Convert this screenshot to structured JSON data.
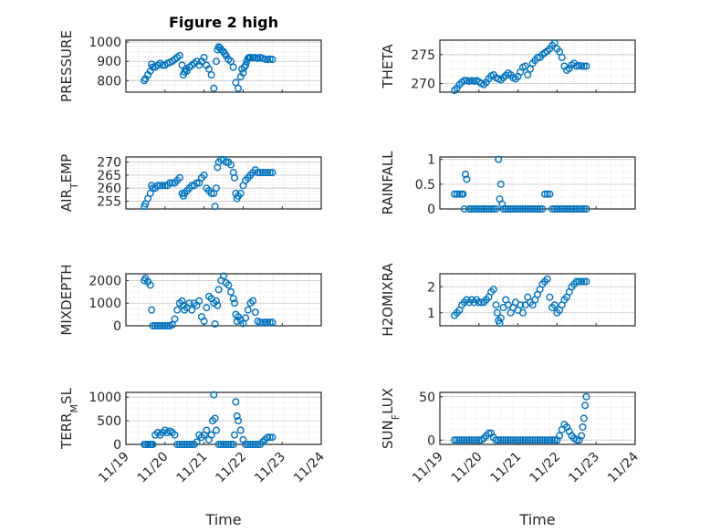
{
  "title": "Figure 2 high",
  "xlabel": "Time",
  "colors": {
    "marker": "#0072BD",
    "grid": "#d9d9d9",
    "axis": "#262626"
  },
  "chart_data": [
    {
      "type": "scatter",
      "col": 0,
      "row": 0,
      "ylabel": "PRESSURE",
      "ylim": [
        740,
        1010
      ],
      "yticks": [
        800,
        900,
        1000
      ],
      "xlim": [
        0,
        8
      ],
      "xticklabels": [],
      "grid": true,
      "x": [
        0.75,
        0.8,
        0.9,
        1.0,
        1.05,
        1.1,
        1.2,
        1.3,
        1.4,
        1.5,
        1.6,
        1.7,
        1.8,
        1.9,
        2.0,
        2.1,
        2.2,
        2.3,
        2.35,
        2.4,
        2.45,
        2.5,
        2.6,
        2.7,
        2.8,
        2.9,
        3.0,
        3.1,
        3.2,
        3.3,
        3.4,
        3.5,
        3.6,
        3.7,
        3.75,
        3.8,
        3.85,
        3.9,
        4.0,
        4.05,
        4.1,
        4.2,
        4.3,
        4.4,
        4.5,
        4.6,
        4.7,
        4.75,
        4.8,
        4.85,
        4.9,
        4.95,
        5.0,
        5.05,
        5.1,
        5.2,
        5.3,
        5.4,
        5.5,
        5.6,
        5.7,
        5.8,
        5.9,
        6.0
      ],
      "y": [
        800,
        810,
        830,
        850,
        885,
        870,
        870,
        880,
        890,
        880,
        880,
        890,
        895,
        900,
        910,
        920,
        930,
        880,
        830,
        845,
        860,
        850,
        870,
        880,
        890,
        900,
        880,
        900,
        920,
        880,
        860,
        830,
        760,
        900,
        960,
        975,
        970,
        960,
        950,
        940,
        930,
        910,
        900,
        870,
        790,
        760,
        820,
        860,
        840,
        870,
        880,
        900,
        915,
        920,
        920,
        918,
        920,
        915,
        920,
        915,
        912,
        910,
        912,
        910
      ]
    },
    {
      "type": "scatter",
      "col": 1,
      "row": 0,
      "ylabel": "THETA",
      "ylim": [
        268.5,
        277.5
      ],
      "yticks": [
        270,
        275
      ],
      "xlim": [
        0,
        8
      ],
      "xticklabels": [],
      "grid": true,
      "x": [
        0.6,
        0.7,
        0.8,
        0.9,
        1.0,
        1.1,
        1.2,
        1.3,
        1.4,
        1.5,
        1.6,
        1.7,
        1.8,
        1.9,
        2.0,
        2.1,
        2.2,
        2.3,
        2.4,
        2.5,
        2.6,
        2.7,
        2.8,
        2.9,
        3.0,
        3.1,
        3.2,
        3.3,
        3.4,
        3.5,
        3.6,
        3.7,
        3.8,
        3.9,
        4.0,
        4.1,
        4.2,
        4.3,
        4.4,
        4.5,
        4.6,
        4.7,
        4.8,
        4.9,
        5.0,
        5.1,
        5.2,
        5.3,
        5.4,
        5.5,
        5.6,
        5.7,
        5.8,
        5.9,
        6.0
      ],
      "y": [
        268.8,
        269.2,
        269.8,
        270.2,
        270.5,
        270.5,
        270.4,
        270.5,
        270.4,
        270.5,
        270.3,
        270.0,
        269.8,
        270.2,
        270.8,
        271.3,
        271.5,
        271.0,
        270.8,
        270.6,
        271.0,
        271.4,
        271.8,
        271.5,
        271.0,
        270.8,
        271.2,
        272.0,
        272.8,
        273.0,
        271.5,
        272.5,
        273.5,
        274.0,
        274.5,
        274.5,
        275.0,
        275.3,
        275.6,
        276.0,
        276.6,
        277.0,
        276.0,
        275.5,
        274.5,
        273.0,
        272.3,
        272.6,
        273.2,
        273.5,
        273.0,
        273.1,
        273.0,
        273.0,
        273.0
      ]
    },
    {
      "type": "scatter",
      "col": 0,
      "row": 1,
      "ylabel": "AIR_TEMP",
      "ylim": [
        252,
        272
      ],
      "yticks": [
        255,
        260,
        265,
        270
      ],
      "xlim": [
        0,
        8
      ],
      "xticklabels": [],
      "grid": true,
      "x": [
        0.75,
        0.8,
        0.9,
        1.0,
        1.05,
        1.1,
        1.2,
        1.3,
        1.4,
        1.5,
        1.6,
        1.7,
        1.8,
        1.9,
        2.0,
        2.1,
        2.2,
        2.3,
        2.35,
        2.4,
        2.5,
        2.6,
        2.7,
        2.8,
        2.9,
        3.0,
        3.1,
        3.2,
        3.3,
        3.4,
        3.5,
        3.6,
        3.65,
        3.7,
        3.75,
        3.8,
        3.9,
        4.0,
        4.1,
        4.2,
        4.3,
        4.4,
        4.45,
        4.5,
        4.55,
        4.6,
        4.7,
        4.8,
        4.9,
        5.0,
        5.1,
        5.2,
        5.3,
        5.4,
        5.5,
        5.6,
        5.7,
        5.8,
        5.9,
        6.0
      ],
      "y": [
        253,
        254,
        256,
        258,
        261,
        260,
        260,
        261,
        261,
        261,
        261,
        261,
        262,
        262,
        262,
        263,
        264,
        258,
        257,
        258,
        259,
        260,
        261,
        261,
        262,
        262,
        264,
        265,
        260,
        259,
        258,
        258,
        253,
        260,
        268,
        270,
        271,
        271,
        270,
        270,
        269,
        266,
        264,
        258,
        256,
        257,
        258,
        261,
        263,
        264,
        265,
        266,
        267,
        266,
        266,
        266,
        266,
        266,
        266,
        266
      ]
    },
    {
      "type": "scatter",
      "col": 1,
      "row": 1,
      "ylabel": "RAINFALL",
      "ylim": [
        0,
        1.05
      ],
      "yticks": [
        0,
        0.5,
        1
      ],
      "xlim": [
        0,
        8
      ],
      "xticklabels": [],
      "grid": true,
      "x": [
        0.6,
        0.7,
        0.8,
        0.9,
        0.95,
        1.0,
        1.05,
        1.1,
        1.2,
        1.3,
        1.4,
        1.5,
        1.6,
        1.7,
        1.8,
        1.9,
        2.0,
        2.1,
        2.2,
        2.3,
        2.4,
        2.45,
        2.5,
        2.55,
        2.6,
        2.7,
        2.8,
        2.9,
        3.0,
        3.1,
        3.2,
        3.3,
        3.4,
        3.5,
        3.6,
        3.7,
        3.8,
        3.9,
        4.0,
        4.1,
        4.2,
        4.3,
        4.4,
        4.5,
        4.6,
        4.7,
        4.8,
        4.9,
        5.0,
        5.1,
        5.2,
        5.3,
        5.4,
        5.5,
        5.6,
        5.7,
        5.8,
        5.9,
        6.0
      ],
      "y": [
        0.3,
        0.3,
        0.3,
        0.3,
        0.3,
        0.0,
        0.7,
        0.6,
        0,
        0,
        0,
        0,
        0,
        0,
        0,
        0,
        0,
        0,
        0,
        0,
        1.0,
        0.2,
        0.5,
        0.1,
        0,
        0,
        0,
        0,
        0,
        0,
        0,
        0,
        0,
        0,
        0,
        0,
        0,
        0,
        0,
        0,
        0,
        0.3,
        0.3,
        0.3,
        0,
        0,
        0,
        0,
        0,
        0,
        0,
        0,
        0,
        0,
        0,
        0,
        0,
        0,
        0
      ]
    },
    {
      "type": "scatter",
      "col": 0,
      "row": 2,
      "ylabel": "MIXDEPTH",
      "ylim": [
        0,
        2300
      ],
      "yticks": [
        0,
        1000,
        2000
      ],
      "xlim": [
        0,
        8
      ],
      "xticklabels": [],
      "grid": true,
      "x": [
        0.75,
        0.8,
        0.9,
        1.0,
        1.05,
        1.1,
        1.2,
        1.3,
        1.4,
        1.5,
        1.6,
        1.7,
        1.8,
        1.9,
        2.0,
        2.1,
        2.2,
        2.3,
        2.35,
        2.4,
        2.5,
        2.6,
        2.7,
        2.8,
        2.9,
        3.0,
        3.1,
        3.2,
        3.3,
        3.4,
        3.5,
        3.6,
        3.65,
        3.7,
        3.75,
        3.8,
        3.9,
        4.0,
        4.1,
        4.2,
        4.3,
        4.4,
        4.45,
        4.5,
        4.55,
        4.6,
        4.7,
        4.8,
        4.9,
        5.0,
        5.1,
        5.2,
        5.3,
        5.4,
        5.5,
        5.6,
        5.7,
        5.8,
        5.9,
        6.0
      ],
      "y": [
        2000,
        2100,
        1950,
        1800,
        700,
        0,
        0,
        0,
        0,
        0,
        0,
        0,
        0,
        50,
        300,
        700,
        1000,
        1100,
        900,
        700,
        800,
        1000,
        700,
        1000,
        900,
        1100,
        400,
        200,
        800,
        1300,
        1200,
        1000,
        80,
        1100,
        900,
        1600,
        2000,
        2200,
        1900,
        1800,
        1500,
        1200,
        1000,
        500,
        200,
        400,
        250,
        100,
        350,
        700,
        1000,
        1100,
        600,
        200,
        150,
        150,
        150,
        150,
        150,
        150
      ]
    },
    {
      "type": "scatter",
      "col": 1,
      "row": 2,
      "ylabel": "H2OMIXRA",
      "ylim": [
        0.5,
        2.5
      ],
      "yticks": [
        1,
        2
      ],
      "xlim": [
        0,
        8
      ],
      "xticklabels": [],
      "grid": true,
      "x": [
        0.6,
        0.7,
        0.8,
        0.9,
        1.0,
        1.1,
        1.2,
        1.3,
        1.4,
        1.5,
        1.6,
        1.7,
        1.8,
        1.9,
        2.0,
        2.1,
        2.2,
        2.3,
        2.35,
        2.4,
        2.45,
        2.5,
        2.6,
        2.7,
        2.8,
        2.9,
        3.0,
        3.1,
        3.2,
        3.3,
        3.4,
        3.5,
        3.6,
        3.7,
        3.8,
        3.9,
        4.0,
        4.1,
        4.2,
        4.3,
        4.4,
        4.5,
        4.6,
        4.7,
        4.8,
        4.9,
        5.0,
        5.1,
        5.2,
        5.3,
        5.4,
        5.5,
        5.6,
        5.7,
        5.8,
        5.9,
        6.0
      ],
      "y": [
        0.9,
        1.0,
        1.1,
        1.3,
        1.4,
        1.5,
        1.4,
        1.5,
        1.4,
        1.5,
        1.4,
        1.4,
        1.4,
        1.5,
        1.6,
        1.8,
        1.9,
        1.3,
        1.0,
        0.7,
        0.6,
        0.8,
        1.2,
        1.5,
        1.3,
        1.0,
        1.2,
        1.4,
        1.1,
        1.3,
        1.0,
        1.3,
        1.6,
        1.4,
        1.3,
        1.5,
        1.7,
        1.9,
        2.1,
        2.2,
        2.3,
        1.6,
        1.2,
        1.3,
        1.0,
        1.1,
        1.3,
        1.5,
        1.6,
        1.8,
        2.0,
        2.1,
        2.2,
        2.2,
        2.2,
        2.2,
        2.2
      ]
    },
    {
      "type": "scatter",
      "col": 0,
      "row": 3,
      "ylabel": "TERR_MSL",
      "ylim": [
        0,
        1100
      ],
      "yticks": [
        0,
        500,
        1000
      ],
      "xlim": [
        0,
        8
      ],
      "xticklabels": [
        "11/19",
        "11/20",
        "11/21",
        "11/22",
        "11/23",
        "11/24"
      ],
      "grid": true,
      "x": [
        0.75,
        0.8,
        0.9,
        1.0,
        1.05,
        1.1,
        1.2,
        1.3,
        1.4,
        1.5,
        1.6,
        1.7,
        1.8,
        1.9,
        2.0,
        2.1,
        2.2,
        2.3,
        2.4,
        2.5,
        2.6,
        2.7,
        2.8,
        2.9,
        3.0,
        3.1,
        3.2,
        3.3,
        3.4,
        3.5,
        3.55,
        3.6,
        3.65,
        3.7,
        3.8,
        3.9,
        4.0,
        4.1,
        4.2,
        4.3,
        4.4,
        4.45,
        4.5,
        4.55,
        4.6,
        4.7,
        4.8,
        4.9,
        5.0,
        5.1,
        5.2,
        5.3,
        5.4,
        5.5,
        5.6,
        5.7,
        5.8,
        5.9,
        6.0
      ],
      "y": [
        0,
        0,
        0,
        0,
        0,
        0,
        200,
        250,
        200,
        250,
        300,
        250,
        280,
        250,
        200,
        0,
        0,
        0,
        0,
        0,
        0,
        0,
        0,
        50,
        200,
        150,
        200,
        300,
        100,
        200,
        500,
        1050,
        550,
        300,
        0,
        0,
        0,
        0,
        0,
        0,
        0,
        200,
        900,
        600,
        500,
        300,
        100,
        0,
        0,
        0,
        0,
        0,
        0,
        0,
        50,
        100,
        150,
        150,
        150
      ]
    },
    {
      "type": "scatter",
      "col": 1,
      "row": 3,
      "ylabel": "SUN_FLUX",
      "ylim": [
        -5,
        55
      ],
      "yticks": [
        0,
        50
      ],
      "xlim": [
        0,
        8
      ],
      "xticklabels": [
        "11/19",
        "11/20",
        "11/21",
        "11/22",
        "11/23",
        "11/24"
      ],
      "grid": true,
      "x": [
        0.6,
        0.7,
        0.8,
        0.9,
        1.0,
        1.1,
        1.2,
        1.3,
        1.4,
        1.5,
        1.6,
        1.7,
        1.8,
        1.9,
        2.0,
        2.1,
        2.2,
        2.3,
        2.4,
        2.5,
        2.6,
        2.7,
        2.8,
        2.9,
        3.0,
        3.1,
        3.2,
        3.3,
        3.4,
        3.5,
        3.6,
        3.7,
        3.8,
        3.9,
        4.0,
        4.1,
        4.2,
        4.3,
        4.4,
        4.5,
        4.6,
        4.7,
        4.8,
        4.9,
        5.0,
        5.1,
        5.2,
        5.3,
        5.4,
        5.5,
        5.6,
        5.7,
        5.8,
        5.85,
        5.9,
        5.95,
        6.0
      ],
      "y": [
        0,
        0,
        0,
        0,
        0,
        0,
        0,
        0,
        0,
        0,
        0,
        0,
        2,
        5,
        8,
        8,
        3,
        0,
        0,
        0,
        0,
        0,
        0,
        0,
        0,
        0,
        0,
        0,
        0,
        0,
        0,
        0,
        0,
        0,
        0,
        0,
        0,
        0,
        0,
        0,
        0,
        0,
        0,
        5,
        12,
        18,
        15,
        10,
        5,
        2,
        0,
        0,
        5,
        15,
        25,
        40,
        50
      ]
    }
  ]
}
